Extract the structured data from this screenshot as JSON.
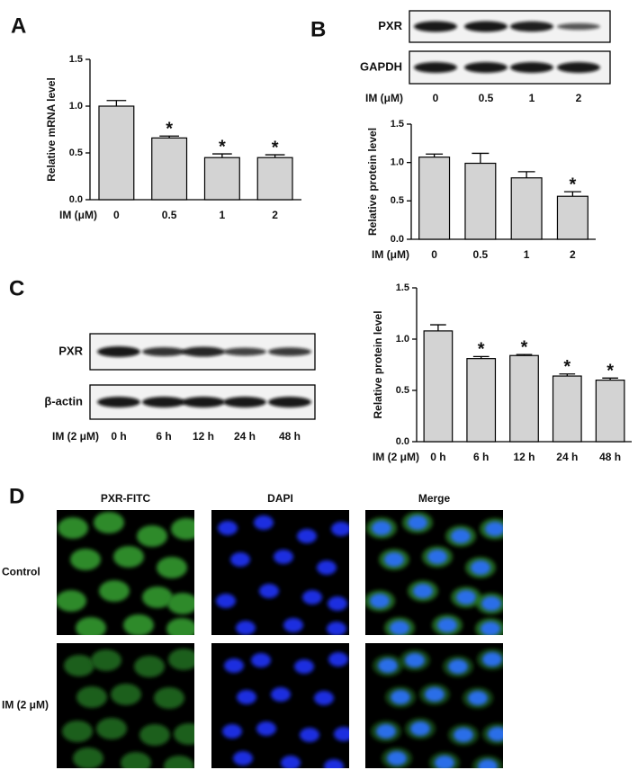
{
  "panel_labels": [
    "A",
    "B",
    "C",
    "D"
  ],
  "chart_data": [
    {
      "type": "bar",
      "y_label": "Relative mRNA level",
      "x_label": "IM (μM)",
      "categories": [
        "0",
        "0.5",
        "1",
        "2"
      ],
      "values": [
        1.0,
        0.66,
        0.45,
        0.45
      ],
      "errors": [
        0.06,
        0.02,
        0.04,
        0.03
      ],
      "annotations": [
        null,
        "*",
        "*",
        "*"
      ],
      "color": "#d3d3d3",
      "ylim": [
        0,
        1.5
      ],
      "yticks": [
        {
          "value": 0,
          "label": "0.0"
        },
        0.5,
        {
          "value": 1,
          "label": "1.0"
        },
        1.5
      ]
    },
    {
      "type": "bar",
      "y_label": "Relative protein level",
      "x_label": "IM (μM)",
      "categories": [
        "0",
        "0.5",
        "1",
        "2"
      ],
      "values": [
        1.07,
        0.99,
        0.8,
        0.56
      ],
      "errors": [
        0.04,
        0.13,
        0.08,
        0.06
      ],
      "annotations": [
        null,
        null,
        null,
        "*"
      ],
      "color": "#d3d3d3",
      "ylim": [
        0,
        1.5
      ],
      "yticks": [
        {
          "value": 0,
          "label": "0.0"
        },
        0.5,
        {
          "value": 1,
          "label": "1.0"
        },
        1.5
      ]
    },
    {
      "type": "bar",
      "y_label": "Relative protein level",
      "x_label": "IM (2 μM)",
      "categories": [
        "0 h",
        "6 h",
        "12 h",
        "24 h",
        "48 h"
      ],
      "values": [
        1.08,
        0.81,
        0.84,
        0.64,
        0.6
      ],
      "errors": [
        0.06,
        0.02,
        0.01,
        0.02,
        0.02
      ],
      "annotations": [
        null,
        "*",
        "*",
        "*",
        "*"
      ],
      "color": "#d3d3d3",
      "ylim": [
        0,
        1.5
      ],
      "yticks": [
        {
          "value": 0,
          "label": "0.0"
        },
        0.5,
        {
          "value": 1,
          "label": "1.0"
        },
        1.5
      ]
    }
  ],
  "blots": [
    {
      "rows": [
        "PXR",
        "GAPDH"
      ],
      "x_label": "IM (μM)",
      "lanes": [
        "0",
        "0.5",
        "1",
        "2"
      ]
    },
    {
      "rows": [
        "PXR",
        "β-actin"
      ],
      "x_label": "IM (2 μM)",
      "lanes": [
        "0 h",
        "6 h",
        "12 h",
        "24 h",
        "48 h"
      ]
    }
  ],
  "microscopy": {
    "columns": [
      "PXR-FITC",
      "DAPI",
      "Merge"
    ],
    "rows": [
      "Control",
      "IM (2 μM)"
    ]
  }
}
